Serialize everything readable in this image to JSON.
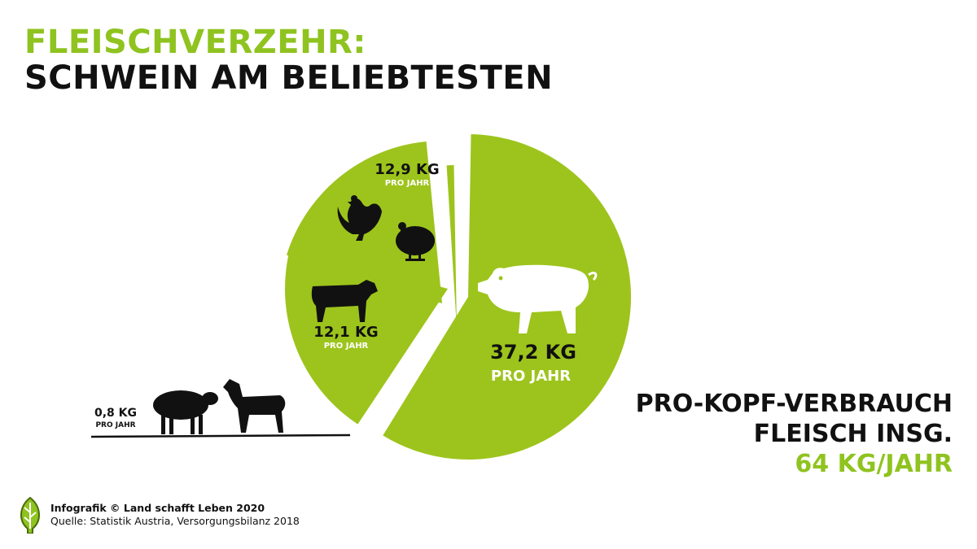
{
  "header": {
    "title_line1": "FLEISCHVERZEHR:",
    "title_line2": "SCHWEIN AM BELIEBTESTEN"
  },
  "chart_data": {
    "type": "pie",
    "unit": "KG",
    "slices": [
      {
        "name": "Schwein",
        "value": 37.2,
        "label": "37,2 KG",
        "sublabel": "PRO JAHR",
        "icons": [
          "pig-icon"
        ]
      },
      {
        "name": "Geflügel",
        "value": 12.9,
        "label": "12,9 KG",
        "sublabel": "PRO JAHR",
        "icons": [
          "chicken-icon",
          "turkey-icon"
        ]
      },
      {
        "name": "Rind",
        "value": 12.1,
        "label": "12,1 KG",
        "sublabel": "PRO JAHR",
        "icons": [
          "cow-icon"
        ]
      },
      {
        "name": "Schaf/Ziege",
        "value": 0.8,
        "label": "0,8 KG",
        "sublabel": "PRO JAHR",
        "icons": [
          "sheep-icon",
          "goat-icon"
        ]
      }
    ],
    "colors": {
      "slice": "#9dc41c",
      "accent": "#8fc31f",
      "text": "#111111",
      "slice_text": "#ffffff"
    }
  },
  "summary": {
    "line1": "PRO-KOPF-VERBRAUCH",
    "line2": "FLEISCH INSG.",
    "total": "64 KG/JAHR"
  },
  "footer": {
    "credit": "Infografik © Land schafft Leben 2020",
    "source": "Quelle: Statistik Austria, Versorgungsbilanz 2018",
    "logo_icon": "leaf-logo-icon"
  }
}
